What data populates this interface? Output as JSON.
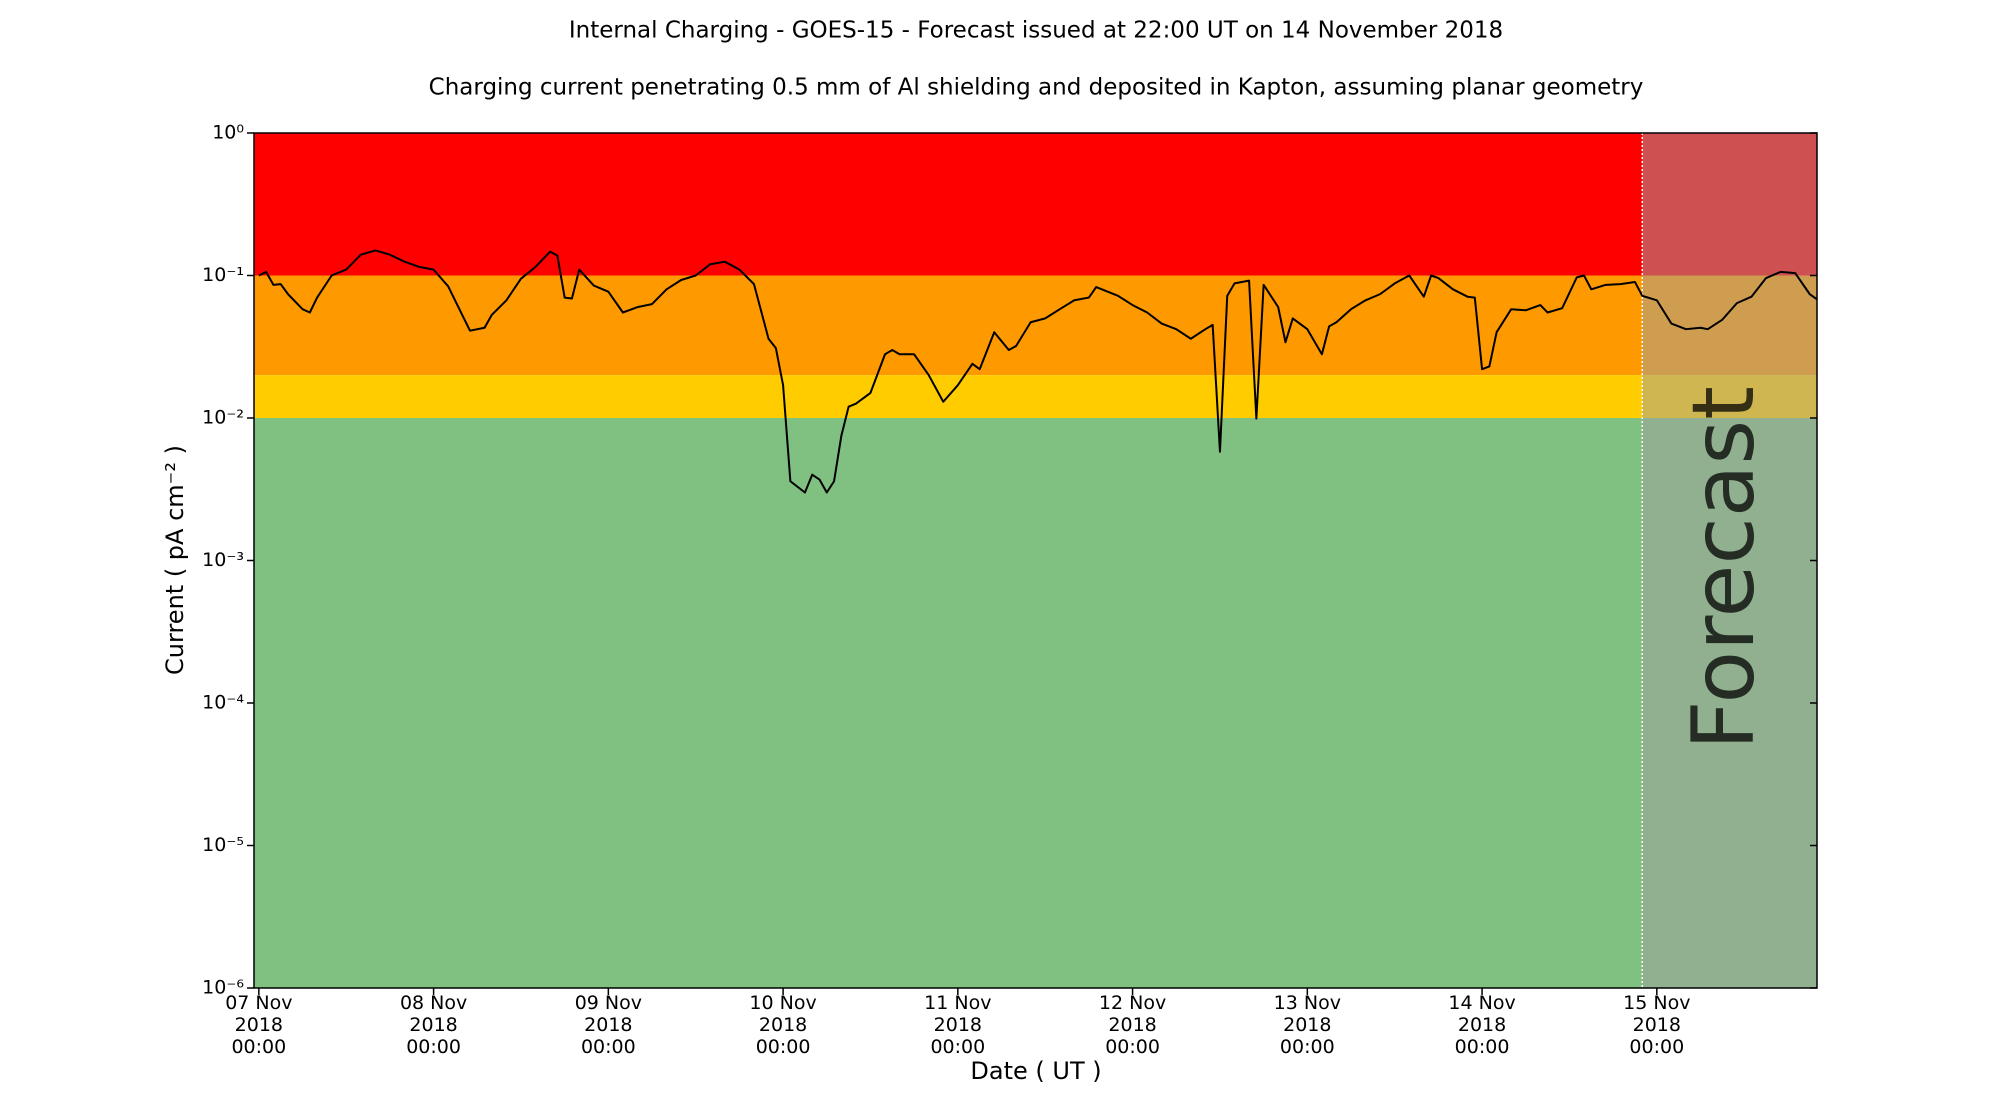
{
  "chart_data": {
    "type": "line",
    "title": "Internal Charging - GOES-15 - Forecast issued at 22:00 UT on 14 November 2018",
    "subtitle": "Charging current penetrating 0.5 mm of Al shielding and deposited in Kapton, assuming planar geometry",
    "x_label": "Date ( UT )",
    "y_label": "Current ( pA cm⁻² )",
    "log_y": true,
    "color": "#000000",
    "xlim": [
      "2018-11-06T23:20",
      "2018-11-15T22:00"
    ],
    "ylim": [
      1e-06,
      1
    ],
    "yticks": [
      {
        "value": 1,
        "label": "10⁰"
      },
      {
        "value": 0.1,
        "label": "10⁻¹"
      },
      {
        "value": 0.01,
        "label": "10⁻²"
      },
      {
        "value": 0.001,
        "label": "10⁻³"
      },
      {
        "value": 0.0001,
        "label": "10⁻⁴"
      },
      {
        "value": 1e-05,
        "label": "10⁻⁵"
      },
      {
        "value": 1e-06,
        "label": "10⁻⁶"
      }
    ],
    "xticks": [
      {
        "value": "2018-11-07T00:00",
        "label": "07 Nov\n2018\n00:00"
      },
      {
        "value": "2018-11-08T00:00",
        "label": "08 Nov\n2018\n00:00"
      },
      {
        "value": "2018-11-09T00:00",
        "label": "09 Nov\n2018\n00:00"
      },
      {
        "value": "2018-11-10T00:00",
        "label": "10 Nov\n2018\n00:00"
      },
      {
        "value": "2018-11-11T00:00",
        "label": "11 Nov\n2018\n00:00"
      },
      {
        "value": "2018-11-12T00:00",
        "label": "12 Nov\n2018\n00:00"
      },
      {
        "value": "2018-11-13T00:00",
        "label": "13 Nov\n2018\n00:00"
      },
      {
        "value": "2018-11-14T00:00",
        "label": "14 Nov\n2018\n00:00"
      },
      {
        "value": "2018-11-15T00:00",
        "label": "15 Nov\n2018\n00:00"
      }
    ],
    "zones": [
      {
        "from": 0.1,
        "to": 1,
        "color": "#ff0000"
      },
      {
        "from": 0.02,
        "to": 0.1,
        "color": "#fe9a00"
      },
      {
        "from": 0.01,
        "to": 0.02,
        "color": "#ffcc00"
      },
      {
        "from": 1e-06,
        "to": 0.01,
        "color": "#80c080"
      }
    ],
    "forecast": {
      "from": "2018-11-14T22:00",
      "label": "Forecast",
      "color": "#a0a0a0",
      "opacity": 0.5
    },
    "x": [
      "2018-11-07T00:00",
      "2018-11-07T01:00",
      "2018-11-07T02:00",
      "2018-11-07T03:00",
      "2018-11-07T04:00",
      "2018-11-07T06:00",
      "2018-11-07T07:00",
      "2018-11-07T08:00",
      "2018-11-07T10:00",
      "2018-11-07T12:00",
      "2018-11-07T14:00",
      "2018-11-07T16:00",
      "2018-11-07T18:00",
      "2018-11-07T20:00",
      "2018-11-07T22:00",
      "2018-11-08T00:00",
      "2018-11-08T02:00",
      "2018-11-08T04:00",
      "2018-11-08T05:00",
      "2018-11-08T07:00",
      "2018-11-08T08:00",
      "2018-11-08T10:00",
      "2018-11-08T12:00",
      "2018-11-08T14:00",
      "2018-11-08T16:00",
      "2018-11-08T17:00",
      "2018-11-08T18:00",
      "2018-11-08T19:00",
      "2018-11-08T20:00",
      "2018-11-08T22:00",
      "2018-11-09T00:00",
      "2018-11-09T02:00",
      "2018-11-09T04:00",
      "2018-11-09T06:00",
      "2018-11-09T08:00",
      "2018-11-09T10:00",
      "2018-11-09T12:00",
      "2018-11-09T14:00",
      "2018-11-09T16:00",
      "2018-11-09T18:00",
      "2018-11-09T20:00",
      "2018-11-09T22:00",
      "2018-11-09T23:00",
      "2018-11-10T00:00",
      "2018-11-10T01:00",
      "2018-11-10T03:00",
      "2018-11-10T04:00",
      "2018-11-10T05:00",
      "2018-11-10T06:00",
      "2018-11-10T07:00",
      "2018-11-10T08:00",
      "2018-11-10T09:00",
      "2018-11-10T10:00",
      "2018-11-10T12:00",
      "2018-11-10T14:00",
      "2018-11-10T15:00",
      "2018-11-10T16:00",
      "2018-11-10T18:00",
      "2018-11-10T20:00",
      "2018-11-10T22:00",
      "2018-11-11T00:00",
      "2018-11-11T02:00",
      "2018-11-11T03:00",
      "2018-11-11T05:00",
      "2018-11-11T07:00",
      "2018-11-11T08:00",
      "2018-11-11T10:00",
      "2018-11-11T12:00",
      "2018-11-11T14:00",
      "2018-11-11T16:00",
      "2018-11-11T18:00",
      "2018-11-11T19:00",
      "2018-11-11T22:00",
      "2018-11-12T00:00",
      "2018-11-12T02:00",
      "2018-11-12T04:00",
      "2018-11-12T06:00",
      "2018-11-12T08:00",
      "2018-11-12T10:00",
      "2018-11-12T11:00",
      "2018-11-12T12:00",
      "2018-11-12T13:00",
      "2018-11-12T14:00",
      "2018-11-12T16:00",
      "2018-11-12T17:00",
      "2018-11-12T18:00",
      "2018-11-12T20:00",
      "2018-11-12T21:00",
      "2018-11-12T22:00",
      "2018-11-13T00:00",
      "2018-11-13T02:00",
      "2018-11-13T03:00",
      "2018-11-13T04:00",
      "2018-11-13T06:00",
      "2018-11-13T08:00",
      "2018-11-13T10:00",
      "2018-11-13T12:00",
      "2018-11-13T14:00",
      "2018-11-13T16:00",
      "2018-11-13T17:00",
      "2018-11-13T18:00",
      "2018-11-13T20:00",
      "2018-11-13T22:00",
      "2018-11-13T23:00",
      "2018-11-14T00:00",
      "2018-11-14T01:00",
      "2018-11-14T02:00",
      "2018-11-14T04:00",
      "2018-11-14T06:00",
      "2018-11-14T08:00",
      "2018-11-14T09:00",
      "2018-11-14T11:00",
      "2018-11-14T13:00",
      "2018-11-14T14:00",
      "2018-11-14T15:00",
      "2018-11-14T17:00",
      "2018-11-14T19:00",
      "2018-11-14T21:00",
      "2018-11-14T22:00",
      "2018-11-15T00:00",
      "2018-11-15T02:00",
      "2018-11-15T04:00",
      "2018-11-15T06:00",
      "2018-11-15T07:00",
      "2018-11-15T09:00",
      "2018-11-15T11:00",
      "2018-11-15T13:00",
      "2018-11-15T15:00",
      "2018-11-15T17:00",
      "2018-11-15T19:00",
      "2018-11-15T21:00",
      "2018-11-15T22:00"
    ],
    "values": [
      0.1,
      0.106,
      0.086,
      0.087,
      0.074,
      0.058,
      0.055,
      0.07,
      0.1,
      0.11,
      0.14,
      0.15,
      0.14,
      0.125,
      0.115,
      0.11,
      0.084,
      0.052,
      0.041,
      0.043,
      0.053,
      0.067,
      0.095,
      0.115,
      0.147,
      0.138,
      0.07,
      0.069,
      0.11,
      0.085,
      0.077,
      0.055,
      0.06,
      0.063,
      0.08,
      0.093,
      0.1,
      0.12,
      0.125,
      0.11,
      0.087,
      0.036,
      0.031,
      0.017,
      0.0036,
      0.003,
      0.004,
      0.0037,
      0.003,
      0.0036,
      0.0075,
      0.012,
      0.0126,
      0.015,
      0.028,
      0.03,
      0.028,
      0.028,
      0.02,
      0.013,
      0.017,
      0.024,
      0.022,
      0.04,
      0.03,
      0.032,
      0.047,
      0.05,
      0.058,
      0.067,
      0.07,
      0.083,
      0.072,
      0.062,
      0.055,
      0.046,
      0.042,
      0.036,
      0.042,
      0.045,
      0.0058,
      0.072,
      0.088,
      0.092,
      0.0099,
      0.086,
      0.06,
      0.034,
      0.05,
      0.042,
      0.028,
      0.044,
      0.047,
      0.058,
      0.067,
      0.074,
      0.088,
      0.1,
      0.071,
      0.1,
      0.096,
      0.08,
      0.071,
      0.07,
      0.022,
      0.023,
      0.04,
      0.058,
      0.057,
      0.062,
      0.055,
      0.059,
      0.097,
      0.1,
      0.08,
      0.086,
      0.087,
      0.09,
      0.072,
      0.067,
      0.046,
      0.042,
      0.043,
      0.042,
      0.049,
      0.064,
      0.071,
      0.096,
      0.106,
      0.104,
      0.074,
      0.068
    ]
  }
}
